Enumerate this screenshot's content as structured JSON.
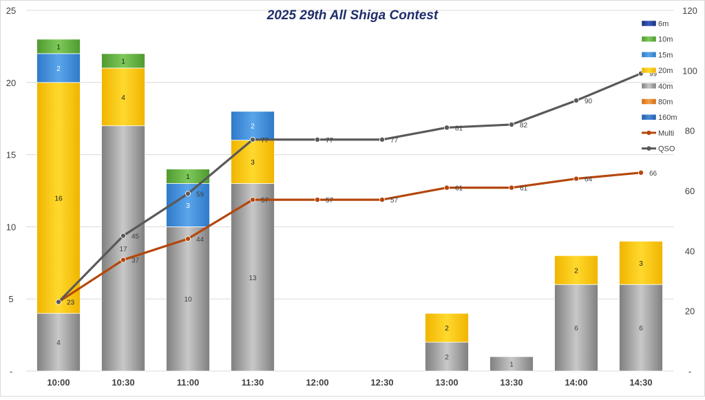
{
  "chart_data": {
    "type": "bar",
    "title": "2025 29th All Shiga Contest",
    "categories": [
      "10:00",
      "10:30",
      "11:00",
      "11:30",
      "12:00",
      "12:30",
      "13:00",
      "13:30",
      "14:00",
      "14:30"
    ],
    "y_left": {
      "ylim": [
        0,
        25
      ],
      "ticks": [
        "-",
        "5",
        "10",
        "15",
        "20",
        "25"
      ]
    },
    "y_right": {
      "ylim": [
        0,
        120
      ],
      "ticks": [
        "-",
        "20",
        "40",
        "60",
        "80",
        "100",
        "120"
      ]
    },
    "bar_series": [
      {
        "name": "160m",
        "color": "#2e75b6",
        "values": [
          0,
          0,
          0,
          0,
          0,
          0,
          0,
          0,
          0,
          0
        ]
      },
      {
        "name": "80m",
        "color": "#e67e22",
        "values": [
          0,
          0,
          0,
          0,
          0,
          0,
          0,
          0,
          0,
          0
        ]
      },
      {
        "name": "40m",
        "color": "#9e9e9e",
        "values": [
          4,
          17,
          10,
          13,
          0,
          0,
          2,
          1,
          6,
          6
        ]
      },
      {
        "name": "20m",
        "color": "#ffc000",
        "values": [
          16,
          4,
          0,
          3,
          0,
          0,
          2,
          0,
          2,
          3
        ]
      },
      {
        "name": "15m",
        "color": "#4a90d9",
        "values": [
          2,
          0,
          3,
          2,
          0,
          0,
          0,
          0,
          0,
          0
        ]
      },
      {
        "name": "10m",
        "color": "#70ad47",
        "values": [
          1,
          1,
          1,
          0,
          0,
          0,
          0,
          0,
          0,
          0
        ]
      },
      {
        "name": "6m",
        "color": "#1f3c88",
        "values": [
          0,
          0,
          0,
          0,
          0,
          0,
          0,
          0,
          0,
          0
        ]
      }
    ],
    "line_series": [
      {
        "name": "Multi",
        "color": "#b5470b",
        "values": [
          23,
          37,
          44,
          57,
          57,
          57,
          61,
          61,
          64,
          66
        ]
      },
      {
        "name": "QSO",
        "color": "#595959",
        "values": [
          23,
          45,
          59,
          77,
          77,
          77,
          81,
          82,
          90,
          99
        ]
      }
    ],
    "legend": [
      "6m",
      "10m",
      "15m",
      "20m",
      "40m",
      "80m",
      "160m",
      "Multi",
      "QSO"
    ],
    "legend_position": "right",
    "grid": true
  }
}
